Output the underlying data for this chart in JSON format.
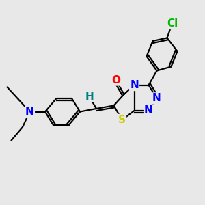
{
  "background_color": "#e8e8e8",
  "bond_color": "#000000",
  "atom_colors": {
    "N": "#0000ff",
    "O": "#ff0000",
    "S": "#cccc00",
    "Cl": "#00bb00",
    "H": "#008080",
    "C": "#000000"
  },
  "lw": 1.6,
  "fs": 11,
  "figsize": [
    3.0,
    3.0
  ],
  "dpi": 100
}
